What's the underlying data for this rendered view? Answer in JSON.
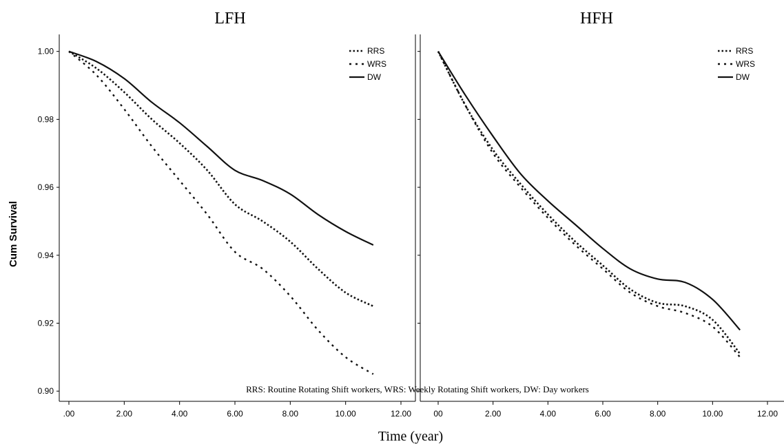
{
  "footnote": "RRS: Routine Rotating Shift workers, WRS: Weekly Rotating Shift workers, DW: Day workers",
  "ylabel": "Cum Survival",
  "xlabel": "Time (year)",
  "chart_data": [
    {
      "type": "line",
      "title": "LFH",
      "xlim": [
        0,
        12
      ],
      "ylim": [
        0.897,
        1.005
      ],
      "x_ticks": [
        0,
        2,
        4,
        6,
        8,
        10,
        12
      ],
      "x_tick_labels": [
        ".00",
        "2.00",
        "4.00",
        "6.00",
        "8.00",
        "10.00",
        "12.00"
      ],
      "y_ticks": [
        0.9,
        0.92,
        0.94,
        0.96,
        0.98,
        1.0
      ],
      "y_tick_labels": [
        "0.90",
        "0.92",
        "0.94",
        "0.96",
        "0.98",
        "1.00"
      ],
      "legend": "top-right",
      "series": [
        {
          "name": "RRS",
          "x": [
            0,
            1,
            2,
            3,
            4,
            5,
            6,
            7,
            8,
            9,
            10,
            11
          ],
          "y": [
            1.0,
            0.995,
            0.988,
            0.98,
            0.973,
            0.965,
            0.955,
            0.95,
            0.944,
            0.936,
            0.929,
            0.925
          ]
        },
        {
          "name": "WRS",
          "x": [
            0,
            1,
            2,
            3,
            4,
            5,
            6,
            7,
            8,
            9,
            10,
            11
          ],
          "y": [
            1.0,
            0.993,
            0.983,
            0.972,
            0.962,
            0.952,
            0.941,
            0.936,
            0.928,
            0.918,
            0.91,
            0.905
          ]
        },
        {
          "name": "DW",
          "x": [
            0,
            1,
            2,
            3,
            4,
            5,
            6,
            7,
            8,
            9,
            10,
            11
          ],
          "y": [
            1.0,
            0.997,
            0.992,
            0.985,
            0.979,
            0.972,
            0.965,
            0.962,
            0.958,
            0.952,
            0.947,
            0.943
          ]
        }
      ]
    },
    {
      "type": "line",
      "title": "HFH",
      "xlim": [
        0,
        12
      ],
      "ylim": [
        0.897,
        1.005
      ],
      "x_ticks": [
        0,
        2,
        4,
        6,
        8,
        10,
        12
      ],
      "x_tick_labels": [
        "00",
        "2.00",
        "4.00",
        "6.00",
        "8.00",
        "10.00",
        "12.00"
      ],
      "legend": "top-right",
      "series": [
        {
          "name": "RRS",
          "x": [
            0,
            1,
            2,
            3,
            4,
            5,
            6,
            7,
            8,
            9,
            10,
            11
          ],
          "y": [
            1.0,
            0.984,
            0.971,
            0.961,
            0.952,
            0.944,
            0.937,
            0.93,
            0.926,
            0.925,
            0.921,
            0.911
          ]
        },
        {
          "name": "WRS",
          "x": [
            0,
            1,
            2,
            3,
            4,
            5,
            6,
            7,
            8,
            9,
            10,
            11
          ],
          "y": [
            1.0,
            0.984,
            0.97,
            0.96,
            0.951,
            0.943,
            0.936,
            0.929,
            0.925,
            0.923,
            0.919,
            0.91
          ]
        },
        {
          "name": "DW",
          "x": [
            0,
            1,
            2,
            3,
            4,
            5,
            6,
            7,
            8,
            9,
            10,
            11
          ],
          "y": [
            1.0,
            0.987,
            0.975,
            0.964,
            0.956,
            0.949,
            0.942,
            0.936,
            0.933,
            0.932,
            0.927,
            0.918
          ]
        }
      ]
    }
  ]
}
